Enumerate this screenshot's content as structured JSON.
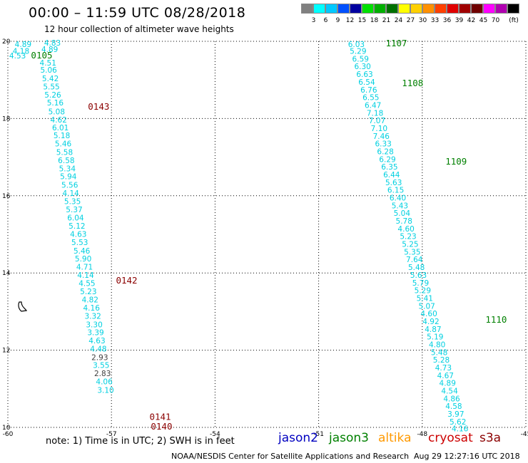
{
  "header": {
    "title": "00:00 – 11:59 UTC 08/28/2018",
    "subtitle": "12 hour collection of altimeter wave heights"
  },
  "legend": {
    "unit": "(ft)",
    "items": [
      {
        "label": "",
        "color": "#808080"
      },
      {
        "label": "3",
        "color": "#00ffff"
      },
      {
        "label": "6",
        "color": "#00c8ff"
      },
      {
        "label": "9",
        "color": "#0050ff"
      },
      {
        "label": "12",
        "color": "#0000a0"
      },
      {
        "label": "15",
        "color": "#00e000"
      },
      {
        "label": "18",
        "color": "#00b000"
      },
      {
        "label": "21",
        "color": "#007000"
      },
      {
        "label": "24",
        "color": "#ffff00"
      },
      {
        "label": "27",
        "color": "#ffd000"
      },
      {
        "label": "30",
        "color": "#ff9000"
      },
      {
        "label": "33",
        "color": "#ff4000"
      },
      {
        "label": "36",
        "color": "#e00000"
      },
      {
        "label": "39",
        "color": "#a00000"
      },
      {
        "label": "42",
        "color": "#700000"
      },
      {
        "label": "45",
        "color": "#ff00ff"
      },
      {
        "label": "70",
        "color": "#b000b0"
      },
      {
        "label": "",
        "color": "#000000"
      }
    ]
  },
  "footer": {
    "note": "note:  1) Time is in UTC;  2) SWH is in feet",
    "satellites": {
      "jason2": {
        "label": "jason2",
        "color": "#0000c0"
      },
      "jason3": {
        "label": "jason3",
        "color": "#008000"
      },
      "altika": {
        "label": "altika",
        "color": "#ff9900"
      },
      "cryosat": {
        "label": "cryosat",
        "color": "#cc0000"
      },
      "s3a": {
        "label": "s3a",
        "color": "#8b0000"
      }
    },
    "credit": "NOAA/NESDIS Center for Satellite Applications and Research",
    "timestamp": "Aug 29 12:27:16 UTC 2018"
  },
  "chart_data": {
    "type": "scatter",
    "xlim": [
      -60,
      -45
    ],
    "ylim": [
      10,
      20
    ],
    "x_ticks": [
      -60,
      -57,
      -54,
      -51,
      -48,
      -45
    ],
    "y_ticks": [
      10,
      12,
      14,
      16,
      18,
      20
    ],
    "grid": true,
    "colors": {
      "swh_cyan": "#00d0e0",
      "swh_gray": "#404040",
      "jason3_label": "#008000",
      "s3a_label": "#8b0000"
    },
    "track_labels": [
      {
        "text": "0105",
        "satellite": "jason3",
        "lon": -59.33,
        "lat": 19.65
      },
      {
        "text": "0143",
        "satellite": "s3a",
        "lon": -57.68,
        "lat": 18.32
      },
      {
        "text": "0142",
        "satellite": "s3a",
        "lon": -56.87,
        "lat": 13.82
      },
      {
        "text": "0141",
        "satellite": "s3a",
        "lon": -55.9,
        "lat": 10.29
      },
      {
        "text": "0140",
        "satellite": "s3a",
        "lon": -55.86,
        "lat": 10.04
      },
      {
        "text": "1107",
        "satellite": "jason3",
        "lon": -49.06,
        "lat": 19.96
      },
      {
        "text": "1108",
        "satellite": "jason3",
        "lon": -48.59,
        "lat": 18.93
      },
      {
        "text": "1109",
        "satellite": "jason3",
        "lon": -47.33,
        "lat": 16.9
      },
      {
        "text": "1110",
        "satellite": "jason3",
        "lon": -46.17,
        "lat": 12.8
      }
    ],
    "series": [
      {
        "name": "0105",
        "satellite": "jason3",
        "points": [
          {
            "lon": -59.8,
            "lat": 19.93,
            "swh": "4.89"
          },
          {
            "lon": -58.95,
            "lat": 19.96,
            "swh": "4.83"
          },
          {
            "lon": -59.86,
            "lat": 19.75,
            "swh": "4.18"
          },
          {
            "lon": -59.03,
            "lat": 19.8,
            "swh": "4.89"
          },
          {
            "lon": -59.96,
            "lat": 19.63,
            "swh": "4.53"
          },
          {
            "lon": -59.08,
            "lat": 19.45,
            "swh": "4.51"
          },
          {
            "lon": -59.06,
            "lat": 19.26,
            "swh": "5.06"
          },
          {
            "lon": -59.01,
            "lat": 19.04,
            "swh": "5.42"
          },
          {
            "lon": -58.98,
            "lat": 18.83,
            "swh": "5.55"
          },
          {
            "lon": -58.94,
            "lat": 18.62,
            "swh": "5.26"
          },
          {
            "lon": -58.87,
            "lat": 18.41,
            "swh": "5.16"
          },
          {
            "lon": -58.83,
            "lat": 18.18,
            "swh": "5.08"
          }
        ]
      },
      {
        "name": "0143",
        "satellite": "s3a",
        "points": [
          {
            "lon": -58.77,
            "lat": 17.97,
            "swh": "4.62"
          },
          {
            "lon": -58.72,
            "lat": 17.77,
            "swh": "6.01"
          },
          {
            "lon": -58.68,
            "lat": 17.56,
            "swh": "5.18"
          },
          {
            "lon": -58.64,
            "lat": 17.35,
            "swh": "5.46"
          },
          {
            "lon": -58.6,
            "lat": 17.13,
            "swh": "5.58"
          },
          {
            "lon": -58.55,
            "lat": 16.92,
            "swh": "6.58"
          },
          {
            "lon": -58.52,
            "lat": 16.71,
            "swh": "5.34"
          },
          {
            "lon": -58.49,
            "lat": 16.5,
            "swh": "5.94"
          },
          {
            "lon": -58.45,
            "lat": 16.28,
            "swh": "5.56"
          },
          {
            "lon": -58.42,
            "lat": 16.07,
            "swh": "4.14"
          },
          {
            "lon": -58.37,
            "lat": 15.86,
            "swh": "5.35"
          },
          {
            "lon": -58.32,
            "lat": 15.65,
            "swh": "5.37"
          },
          {
            "lon": -58.28,
            "lat": 15.43,
            "swh": "6.04"
          },
          {
            "lon": -58.24,
            "lat": 15.22,
            "swh": "5.12"
          },
          {
            "lon": -58.2,
            "lat": 15.01,
            "swh": "4.63"
          },
          {
            "lon": -58.16,
            "lat": 14.8,
            "swh": "5.53"
          },
          {
            "lon": -58.1,
            "lat": 14.58,
            "swh": "5.46"
          }
        ]
      },
      {
        "name": "0142",
        "satellite": "s3a",
        "points": [
          {
            "lon": -58.06,
            "lat": 14.37,
            "swh": "5.90"
          },
          {
            "lon": -58.02,
            "lat": 14.16,
            "swh": "4.71"
          },
          {
            "lon": -57.99,
            "lat": 13.95,
            "swh": "4.14"
          },
          {
            "lon": -57.95,
            "lat": 13.74,
            "swh": "4.55"
          },
          {
            "lon": -57.91,
            "lat": 13.52,
            "swh": "5.23"
          },
          {
            "lon": -57.86,
            "lat": 13.31,
            "swh": "4.82"
          },
          {
            "lon": -57.82,
            "lat": 13.1,
            "swh": "4.16"
          },
          {
            "lon": -57.78,
            "lat": 12.89,
            "swh": "3.32"
          },
          {
            "lon": -57.74,
            "lat": 12.67,
            "swh": "3.30"
          },
          {
            "lon": -57.7,
            "lat": 12.46,
            "swh": "3.39"
          },
          {
            "lon": -57.66,
            "lat": 12.25,
            "swh": "4.63"
          },
          {
            "lon": -57.62,
            "lat": 12.04,
            "swh": "4.48"
          },
          {
            "lon": -57.58,
            "lat": 11.82,
            "swh": "2.93",
            "gray": true
          },
          {
            "lon": -57.54,
            "lat": 11.61,
            "swh": "3.55"
          },
          {
            "lon": -57.5,
            "lat": 11.4,
            "swh": "2.83",
            "gray": true
          },
          {
            "lon": -57.45,
            "lat": 11.19,
            "swh": "4.06"
          },
          {
            "lon": -57.41,
            "lat": 10.97,
            "swh": "3.10"
          }
        ]
      },
      {
        "name": "1107",
        "satellite": "jason3",
        "points": [
          {
            "lon": -50.15,
            "lat": 19.93,
            "swh": "6.03"
          },
          {
            "lon": -50.1,
            "lat": 19.75,
            "swh": "5.29"
          },
          {
            "lon": -50.03,
            "lat": 19.55,
            "swh": "6.59"
          },
          {
            "lon": -49.97,
            "lat": 19.35,
            "swh": "6.30"
          },
          {
            "lon": -49.91,
            "lat": 19.15,
            "swh": "6.63"
          },
          {
            "lon": -49.85,
            "lat": 18.95,
            "swh": "6.54"
          },
          {
            "lon": -49.79,
            "lat": 18.75,
            "swh": "6.76"
          },
          {
            "lon": -49.73,
            "lat": 18.55,
            "swh": "6.55"
          },
          {
            "lon": -49.67,
            "lat": 18.35,
            "swh": "6.47"
          },
          {
            "lon": -49.61,
            "lat": 18.15,
            "swh": "7.18"
          },
          {
            "lon": -49.55,
            "lat": 17.95,
            "swh": "7.07"
          },
          {
            "lon": -49.49,
            "lat": 17.75,
            "swh": "7.10"
          },
          {
            "lon": -49.43,
            "lat": 17.55,
            "swh": "7.46"
          },
          {
            "lon": -49.37,
            "lat": 17.35,
            "swh": "6.33"
          },
          {
            "lon": -49.31,
            "lat": 17.15,
            "swh": "6.28"
          },
          {
            "lon": -49.25,
            "lat": 16.95,
            "swh": "6.29"
          },
          {
            "lon": -49.19,
            "lat": 16.75,
            "swh": "6.35"
          },
          {
            "lon": -49.13,
            "lat": 16.55,
            "swh": "6.44"
          },
          {
            "lon": -49.07,
            "lat": 16.35,
            "swh": "5.63"
          },
          {
            "lon": -49.01,
            "lat": 16.15,
            "swh": "6.15"
          },
          {
            "lon": -48.95,
            "lat": 15.95,
            "swh": "6.40"
          },
          {
            "lon": -48.89,
            "lat": 15.75,
            "swh": "5.43"
          }
        ]
      },
      {
        "name": "1109",
        "satellite": "jason3",
        "points": [
          {
            "lon": -48.83,
            "lat": 15.55,
            "swh": "5.04"
          },
          {
            "lon": -48.77,
            "lat": 15.35,
            "swh": "5.78"
          },
          {
            "lon": -48.71,
            "lat": 15.15,
            "swh": "4.60"
          },
          {
            "lon": -48.65,
            "lat": 14.95,
            "swh": "5.23"
          },
          {
            "lon": -48.59,
            "lat": 14.75,
            "swh": "5.25"
          },
          {
            "lon": -48.53,
            "lat": 14.55,
            "swh": "5.35"
          },
          {
            "lon": -48.47,
            "lat": 14.35,
            "swh": "7.64"
          },
          {
            "lon": -48.41,
            "lat": 14.15,
            "swh": "5.48"
          },
          {
            "lon": -48.35,
            "lat": 13.95,
            "swh": "5.63"
          },
          {
            "lon": -48.29,
            "lat": 13.75,
            "swh": "5.79"
          },
          {
            "lon": -48.23,
            "lat": 13.55,
            "swh": "5.29"
          },
          {
            "lon": -48.17,
            "lat": 13.35,
            "swh": "5.41"
          },
          {
            "lon": -48.11,
            "lat": 13.15,
            "swh": "5.07"
          },
          {
            "lon": -48.05,
            "lat": 12.95,
            "swh": "4.60"
          },
          {
            "lon": -47.99,
            "lat": 12.75,
            "swh": "4.92"
          }
        ]
      },
      {
        "name": "1110",
        "satellite": "jason3",
        "points": [
          {
            "lon": -47.93,
            "lat": 12.55,
            "swh": "4.87"
          },
          {
            "lon": -47.87,
            "lat": 12.35,
            "swh": "5.19"
          },
          {
            "lon": -47.81,
            "lat": 12.15,
            "swh": "4.80"
          },
          {
            "lon": -47.75,
            "lat": 11.95,
            "swh": "5.48"
          },
          {
            "lon": -47.69,
            "lat": 11.75,
            "swh": "5.28"
          },
          {
            "lon": -47.63,
            "lat": 11.55,
            "swh": "4.73"
          },
          {
            "lon": -47.57,
            "lat": 11.35,
            "swh": "4.67"
          },
          {
            "lon": -47.51,
            "lat": 11.15,
            "swh": "4.89"
          },
          {
            "lon": -47.45,
            "lat": 10.95,
            "swh": "4.54"
          },
          {
            "lon": -47.39,
            "lat": 10.75,
            "swh": "4.86"
          },
          {
            "lon": -47.33,
            "lat": 10.55,
            "swh": "4.58"
          },
          {
            "lon": -47.27,
            "lat": 10.35,
            "swh": "3.97"
          },
          {
            "lon": -47.21,
            "lat": 10.15,
            "swh": "5.62"
          },
          {
            "lon": -47.15,
            "lat": 9.97,
            "swh": "4.16"
          }
        ]
      }
    ]
  }
}
